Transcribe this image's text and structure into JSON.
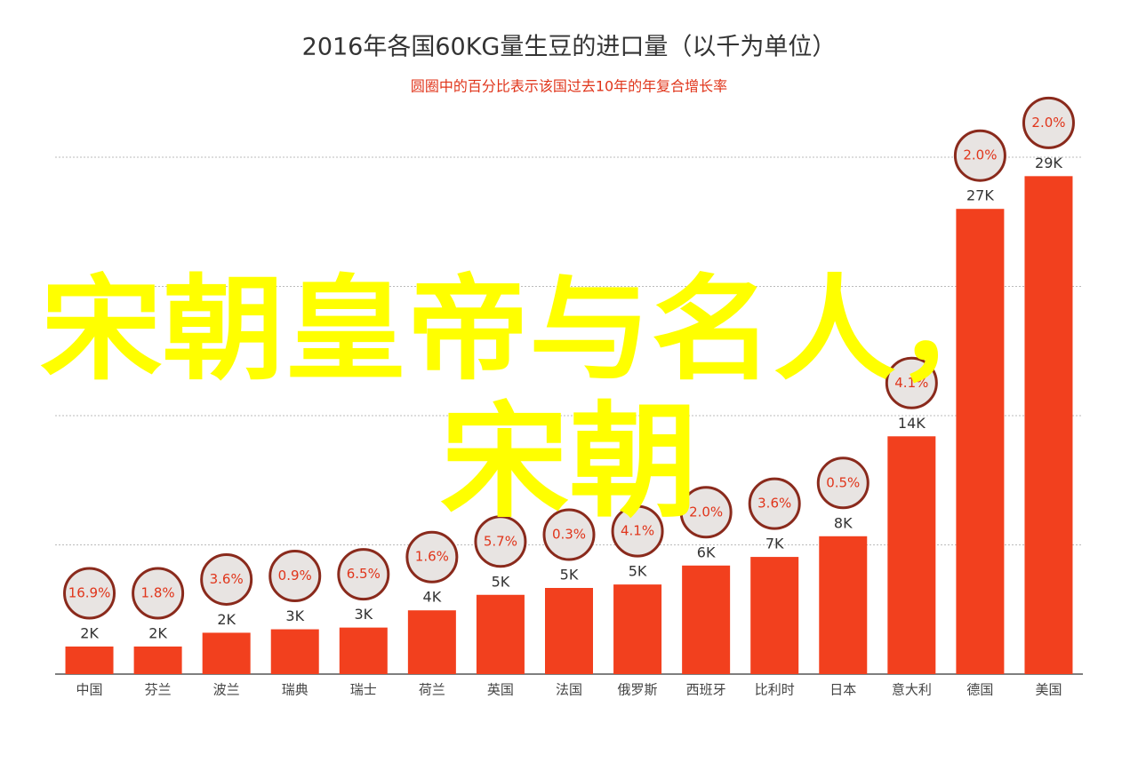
{
  "chart_data": {
    "type": "bar",
    "title": "2016年各国60KG量生豆的进口量（以千为单位）",
    "subtitle": "圆圈中的百分比表示该国过去10年的年复合增长率",
    "categories": [
      "中国",
      "芬兰",
      "波兰",
      "瑞典",
      "瑞士",
      "荷兰",
      "英国",
      "法国",
      "俄罗斯",
      "西班牙",
      "比利时",
      "日本",
      "意大利",
      "德国",
      "美国"
    ],
    "values": [
      1.6,
      1.6,
      2.4,
      2.6,
      2.7,
      3.7,
      4.6,
      5.0,
      5.2,
      6.3,
      6.8,
      8.0,
      13.8,
      27.0,
      28.9
    ],
    "value_labels": [
      "2K",
      "2K",
      "2K",
      "3K",
      "3K",
      "4K",
      "5K",
      "5K",
      "5K",
      "6K",
      "7K",
      "8K",
      "14K",
      "27K",
      "29K"
    ],
    "growth_labels": [
      "16.9%",
      "1.8%",
      "3.6%",
      "0.9%",
      "6.5%",
      "1.6%",
      "5.7%",
      "0.3%",
      "4.1%",
      "2.0%",
      "3.6%",
      "0.5%",
      "4.1%",
      "2.0%",
      "2.0%"
    ],
    "color": "#f2401e",
    "ylim": [
      0,
      30
    ],
    "yticks": [
      7.5,
      15,
      22.5,
      30
    ],
    "grid": true,
    "overlay": [
      "宋朝皇帝与名人，",
      "宋朝"
    ]
  }
}
